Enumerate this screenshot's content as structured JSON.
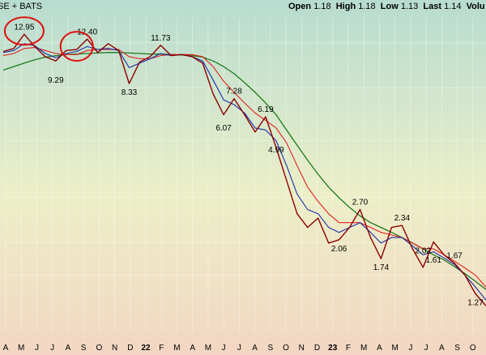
{
  "header": {
    "symbol": "SE + BATS",
    "ohlc": {
      "open_label": "Open",
      "open": "1.18",
      "high_label": "High",
      "high": "1.18",
      "low_label": "Low",
      "low": "1.13",
      "last_label": "Last",
      "last": "1.14",
      "volume_label": "Volu"
    }
  },
  "colors": {
    "background_top": "#b7dcd0",
    "background_mid": "#ecefc8",
    "background_bottom": "#f3d6c3",
    "price": "#8b0000",
    "ma_short": "#1a2fa8",
    "ma_mid": "#e02020",
    "ma_long": "#1c7a1c",
    "circle": "#e01010"
  },
  "chart_data": {
    "type": "line",
    "x_axis_labels": [
      "A",
      "M",
      "J",
      "J",
      "A",
      "S",
      "O",
      "N",
      "D",
      "22",
      "F",
      "M",
      "A",
      "M",
      "J",
      "J",
      "A",
      "S",
      "O",
      "N",
      "D",
      "23",
      "F",
      "M",
      "A",
      "M",
      "J",
      "J",
      "A",
      "S",
      "O"
    ],
    "series": [
      {
        "values": [
          11.1,
          11.4,
          12.95,
          11.6,
          10.6,
          10.2,
          11.2,
          11.3,
          12.4,
          11.0,
          11.9,
          11.2,
          8.33,
          10.1,
          10.6,
          11.73,
          10.7,
          10.8,
          10.6,
          10.0,
          7.6,
          6.3,
          7.28,
          6.3,
          5.4,
          6.19,
          4.7,
          3.5,
          2.6,
          2.3,
          2.5,
          2.0,
          2.06,
          2.3,
          2.7,
          2.1,
          1.74,
          2.3,
          2.34,
          1.9,
          1.61,
          2.02,
          1.8,
          1.67,
          1.5,
          1.27,
          1.14
        ]
      },
      {
        "values": [
          11.0,
          11.2,
          11.9,
          11.7,
          10.9,
          10.5,
          10.9,
          11.1,
          11.6,
          11.3,
          11.4,
          11.2,
          9.6,
          10.0,
          10.4,
          10.9,
          10.7,
          10.8,
          10.6,
          10.2,
          8.6,
          7.2,
          6.9,
          6.4,
          5.6,
          5.5,
          5.0,
          4.0,
          3.1,
          2.7,
          2.6,
          2.3,
          2.2,
          2.3,
          2.4,
          2.2,
          2.0,
          2.1,
          2.1,
          1.95,
          1.8,
          1.85,
          1.75,
          1.65,
          1.5,
          1.35,
          1.2
        ]
      },
      {
        "values": [
          10.7,
          10.9,
          11.4,
          11.5,
          11.2,
          10.9,
          10.8,
          10.8,
          11.2,
          11.3,
          11.3,
          11.3,
          10.6,
          10.4,
          10.4,
          10.7,
          10.8,
          10.8,
          10.8,
          10.6,
          9.7,
          8.5,
          7.7,
          7.0,
          6.4,
          6.0,
          5.6,
          4.9,
          4.0,
          3.3,
          2.9,
          2.6,
          2.4,
          2.4,
          2.4,
          2.3,
          2.2,
          2.15,
          2.1,
          2.0,
          1.9,
          1.9,
          1.8,
          1.7,
          1.6,
          1.5,
          1.35
        ]
      },
      {
        "values": [
          9.4,
          9.7,
          10.0,
          10.3,
          10.55,
          10.7,
          10.8,
          10.85,
          10.9,
          10.95,
          11.0,
          11.0,
          10.95,
          10.9,
          10.85,
          10.85,
          10.8,
          10.75,
          10.7,
          10.55,
          10.2,
          9.7,
          9.1,
          8.4,
          7.7,
          7.0,
          6.3,
          5.5,
          4.8,
          4.2,
          3.7,
          3.3,
          3.0,
          2.75,
          2.55,
          2.4,
          2.3,
          2.2,
          2.1,
          2.0,
          1.9,
          1.8,
          1.72,
          1.62,
          1.52,
          1.42,
          1.32
        ]
      }
    ],
    "annotations": [
      "12.95",
      "9.29",
      "12.40",
      "8.33",
      "11.73",
      "7.28",
      "6.07",
      "6.19",
      "4.99",
      "2.70",
      "2.06",
      "2.34",
      "1.74",
      "1.61",
      "2.02",
      "1.67",
      "1.27"
    ],
    "y_scale": "log",
    "ylim": [
      0.9,
      15
    ],
    "grid": true,
    "legend": "none"
  }
}
